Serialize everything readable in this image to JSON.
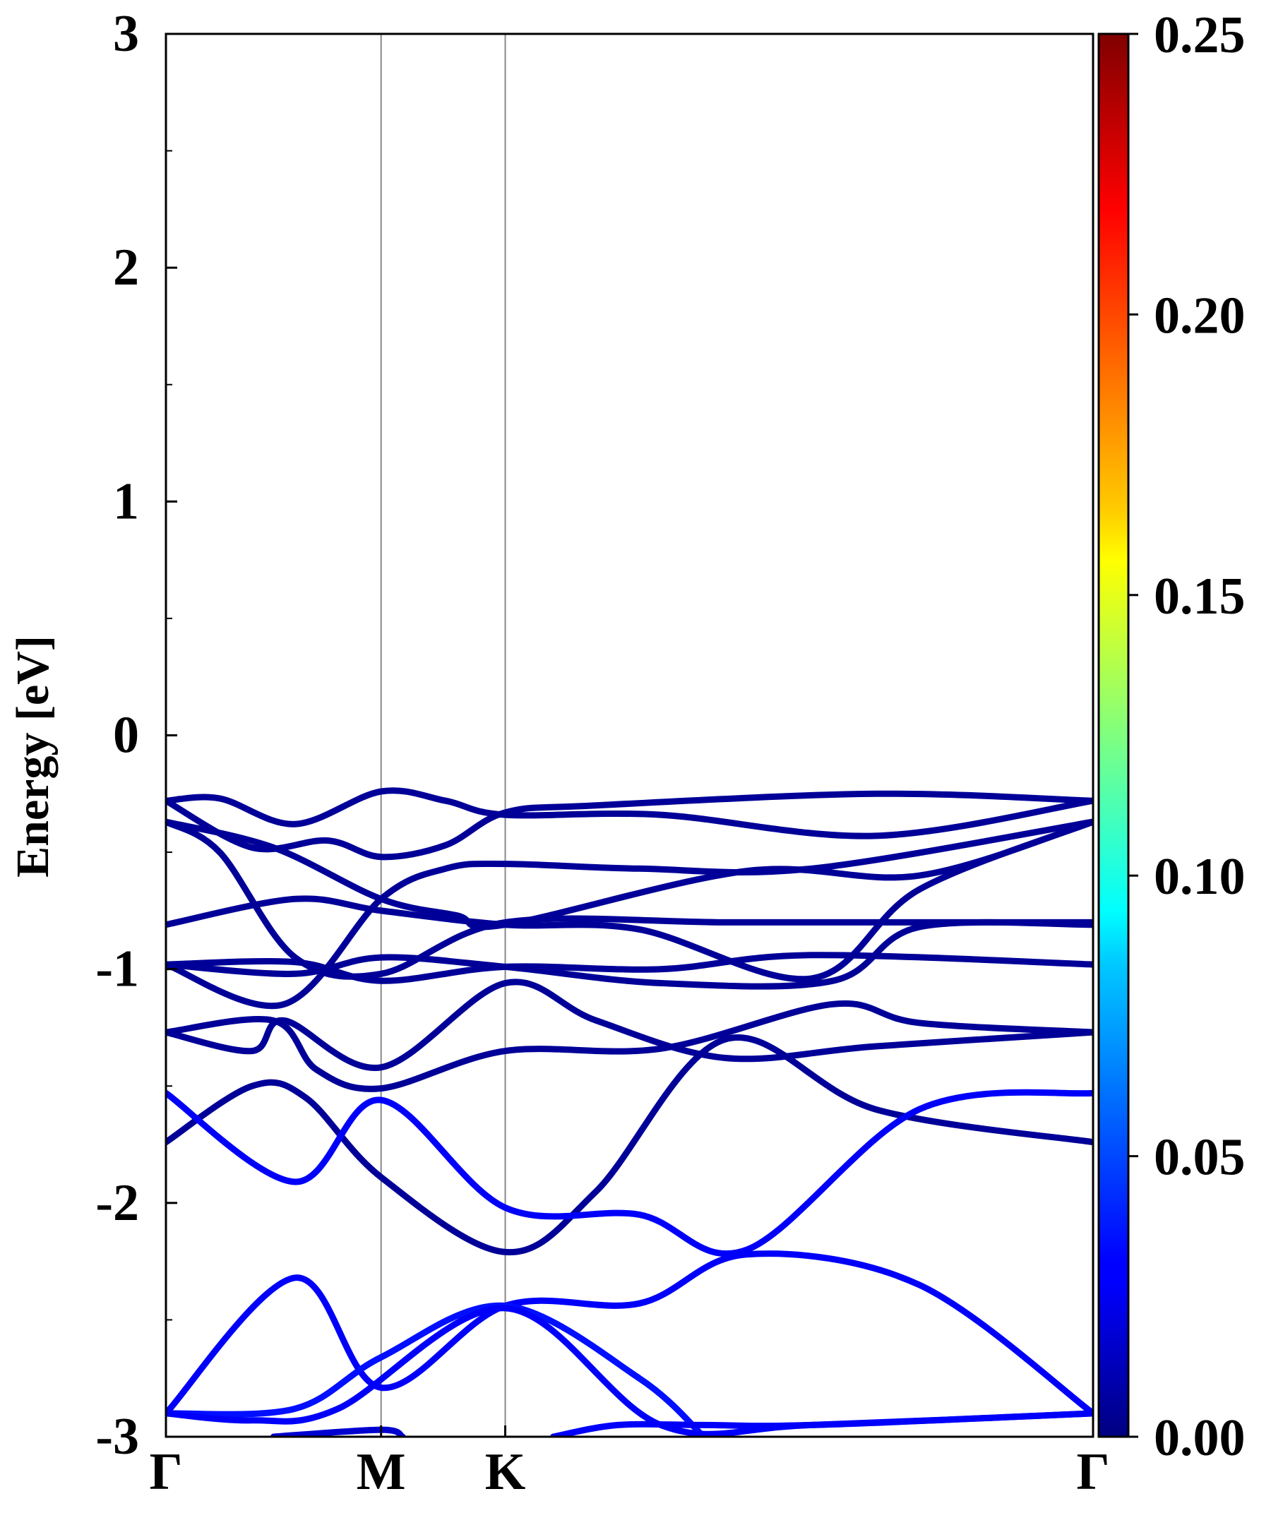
{
  "chart_data": {
    "type": "line",
    "title": "",
    "xlabel": "",
    "ylabel": "Energy [eV]",
    "ylim": [
      -3,
      3
    ],
    "yticks": [
      "3",
      "2",
      "1",
      "0",
      "-1",
      "-2",
      "-3"
    ],
    "ytick_values": [
      3,
      2,
      1,
      0,
      -1,
      -2,
      -3
    ],
    "kpath": [
      "Γ",
      "M",
      "K",
      "Γ"
    ],
    "kpath_positions": [
      0,
      1,
      1.577,
      4.309
    ],
    "grid": false,
    "vertical_lines_at": [
      1,
      1.577
    ],
    "colorbar": {
      "colormap": "jet",
      "range": [
        0,
        0.25
      ],
      "tick_values": [
        0,
        0.05,
        0.1,
        0.15,
        0.2,
        0.25
      ],
      "tick_labels": [
        "0.00",
        "0.05",
        "0.10",
        "0.15",
        "0.20",
        "0.25"
      ]
    },
    "series": [
      {
        "weight": 0.006,
        "points": [
          [
            0,
            -0.28
          ],
          [
            0.25,
            -0.27
          ],
          [
            0.6,
            -0.38
          ],
          [
            1,
            -0.24
          ],
          [
            1.3,
            -0.28
          ],
          [
            1.577,
            -0.34
          ],
          [
            2.3,
            -0.34
          ],
          [
            3.3,
            -0.43
          ],
          [
            4.309,
            -0.28
          ]
        ]
      },
      {
        "weight": 0.006,
        "points": [
          [
            0,
            -0.28
          ],
          [
            0.4,
            -0.48
          ],
          [
            0.75,
            -0.45
          ],
          [
            1,
            -0.52
          ],
          [
            1.3,
            -0.47
          ],
          [
            1.577,
            -0.33
          ],
          [
            2.0,
            -0.3
          ],
          [
            3.3,
            -0.25
          ],
          [
            4.309,
            -0.28
          ]
        ]
      },
      {
        "weight": 0.006,
        "points": [
          [
            0,
            -0.37
          ],
          [
            0.5,
            -0.48
          ],
          [
            1,
            -0.7
          ],
          [
            1.35,
            -0.77
          ],
          [
            1.577,
            -0.81
          ],
          [
            2.7,
            -0.58
          ],
          [
            3.5,
            -0.6
          ],
          [
            4.309,
            -0.37
          ]
        ]
      },
      {
        "weight": 0.006,
        "points": [
          [
            0,
            -0.37
          ],
          [
            0.25,
            -0.5
          ],
          [
            0.6,
            -0.95
          ],
          [
            1,
            -1.02
          ],
          [
            1.577,
            -0.8
          ],
          [
            2.6,
            -0.8
          ],
          [
            3.5,
            -0.8
          ],
          [
            4.309,
            -0.8
          ]
        ]
      },
      {
        "weight": 0.006,
        "points": [
          [
            0,
            -0.81
          ],
          [
            0.6,
            -0.7
          ],
          [
            1,
            -0.75
          ],
          [
            1.577,
            -0.81
          ],
          [
            2.2,
            -0.83
          ],
          [
            3.0,
            -1.04
          ],
          [
            3.5,
            -0.66
          ],
          [
            4.309,
            -0.37
          ]
        ]
      },
      {
        "weight": 0.006,
        "points": [
          [
            0,
            -0.98
          ],
          [
            0.55,
            -1.15
          ],
          [
            1,
            -0.7
          ],
          [
            1.3,
            -0.57
          ],
          [
            1.577,
            -0.55
          ],
          [
            2.2,
            -0.57
          ],
          [
            3.0,
            -0.57
          ],
          [
            4.309,
            -0.37
          ]
        ]
      },
      {
        "weight": 0.006,
        "points": [
          [
            0,
            -0.98
          ],
          [
            0.6,
            -1.02
          ],
          [
            1,
            -0.95
          ],
          [
            1.577,
            -0.99
          ],
          [
            2.3,
            -1.06
          ],
          [
            3.1,
            -1.05
          ],
          [
            3.5,
            -0.82
          ],
          [
            4.309,
            -0.81
          ]
        ]
      },
      {
        "weight": 0.006,
        "points": [
          [
            0,
            -0.98
          ],
          [
            0.6,
            -0.97
          ],
          [
            1,
            -1.05
          ],
          [
            1.577,
            -0.99
          ],
          [
            2.3,
            -1.0
          ],
          [
            3.0,
            -0.94
          ],
          [
            4.309,
            -0.98
          ]
        ]
      },
      {
        "weight": 0.006,
        "points": [
          [
            0,
            -1.27
          ],
          [
            0.4,
            -1.35
          ],
          [
            0.55,
            -1.22
          ],
          [
            1,
            -1.42
          ],
          [
            1.577,
            -1.06
          ],
          [
            2.0,
            -1.22
          ],
          [
            2.6,
            -1.38
          ],
          [
            3.3,
            -1.33
          ],
          [
            4.309,
            -1.27
          ]
        ]
      },
      {
        "weight": 0.006,
        "points": [
          [
            0,
            -1.27
          ],
          [
            0.5,
            -1.22
          ],
          [
            0.7,
            -1.43
          ],
          [
            1,
            -1.51
          ],
          [
            1.577,
            -1.35
          ],
          [
            2.3,
            -1.34
          ],
          [
            3.1,
            -1.15
          ],
          [
            3.5,
            -1.23
          ],
          [
            4.309,
            -1.27
          ]
        ]
      },
      {
        "weight": 0.006,
        "points": [
          [
            0,
            -1.74
          ],
          [
            0.4,
            -1.5
          ],
          [
            0.65,
            -1.55
          ],
          [
            1,
            -1.89
          ],
          [
            1.577,
            -2.21
          ],
          [
            2.0,
            -1.95
          ],
          [
            2.6,
            -1.3
          ],
          [
            3.3,
            -1.6
          ],
          [
            4.309,
            -1.74
          ]
        ]
      },
      {
        "weight": 0.03,
        "points": [
          [
            0,
            -1.53
          ],
          [
            0.6,
            -1.91
          ],
          [
            1,
            -1.56
          ],
          [
            1.577,
            -2.02
          ],
          [
            2.2,
            -2.05
          ],
          [
            2.7,
            -2.2
          ],
          [
            3.5,
            -1.6
          ],
          [
            4.309,
            -1.53
          ]
        ]
      },
      {
        "weight": 0.03,
        "points": [
          [
            0,
            -2.9
          ],
          [
            0.6,
            -2.32
          ],
          [
            1,
            -2.79
          ],
          [
            1.577,
            -2.44
          ],
          [
            2.2,
            -2.43
          ],
          [
            2.7,
            -2.22
          ],
          [
            3.5,
            -2.35
          ],
          [
            4.309,
            -2.9
          ]
        ]
      },
      {
        "weight": 0.035,
        "points": [
          [
            0,
            -2.9
          ],
          [
            0.6,
            -2.88
          ],
          [
            1,
            -2.66
          ],
          [
            1.577,
            -2.44
          ],
          [
            2.2,
            -2.75
          ],
          [
            2.5,
            -3.0
          ]
        ]
      },
      {
        "weight": 0.03,
        "points": [
          [
            0,
            -2.9
          ],
          [
            0.4,
            -2.93
          ],
          [
            0.8,
            -2.88
          ],
          [
            1.577,
            -2.45
          ],
          [
            2.3,
            -2.95
          ],
          [
            3.0,
            -2.95
          ],
          [
            4.309,
            -2.9
          ]
        ]
      },
      {
        "weight": 0.02,
        "points": [
          [
            0.5,
            -3.0
          ],
          [
            1,
            -2.97
          ],
          [
            1.1,
            -3.0
          ]
        ]
      },
      {
        "weight": 0.03,
        "points": [
          [
            1.8,
            -3.0
          ],
          [
            2.1,
            -2.95
          ],
          [
            2.5,
            -2.95
          ],
          [
            3.0,
            -2.95
          ],
          [
            4.309,
            -2.9
          ]
        ]
      }
    ]
  }
}
